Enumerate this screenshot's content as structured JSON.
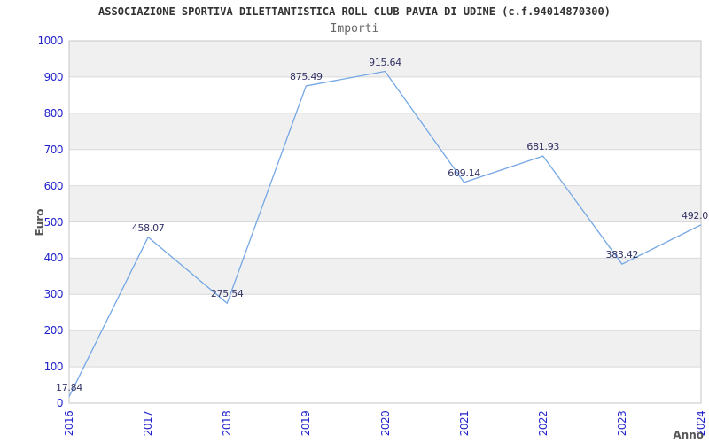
{
  "chart_data": {
    "type": "line",
    "title": "ASSOCIAZIONE SPORTIVA DILETTANTISTICA ROLL CLUB PAVIA DI UDINE (c.f.94014870300)",
    "subtitle": "Importi",
    "xlabel": "Anno",
    "ylabel": "Euro",
    "x": [
      "2016",
      "2017",
      "2018",
      "2019",
      "2020",
      "2021",
      "2022",
      "2023",
      "2024"
    ],
    "values": [
      17.84,
      458.07,
      275.54,
      875.49,
      915.64,
      609.14,
      681.93,
      383.42,
      492.0
    ],
    "labels": [
      "17.84",
      "458.07",
      "275.54",
      "875.49",
      "915.64",
      "609.14",
      "681.93",
      "383.42",
      "492.0"
    ],
    "ylim": [
      0,
      1000
    ],
    "yticks": [
      "0",
      "100",
      "200",
      "300",
      "400",
      "500",
      "600",
      "700",
      "800",
      "900",
      "1000"
    ],
    "grid": true,
    "legend": "none",
    "band_fill_alternating": true,
    "colors": {
      "line": "#74a7e4",
      "tick_label": "#2323cc",
      "value_label": "#333366",
      "title": "#333333",
      "subtitle": "#666666",
      "axis_label": "#555555",
      "band": "#f0f0f0",
      "gridline": "#d9d9d9",
      "plot_border": "#c6c6c6",
      "background": "#ffffff"
    }
  }
}
